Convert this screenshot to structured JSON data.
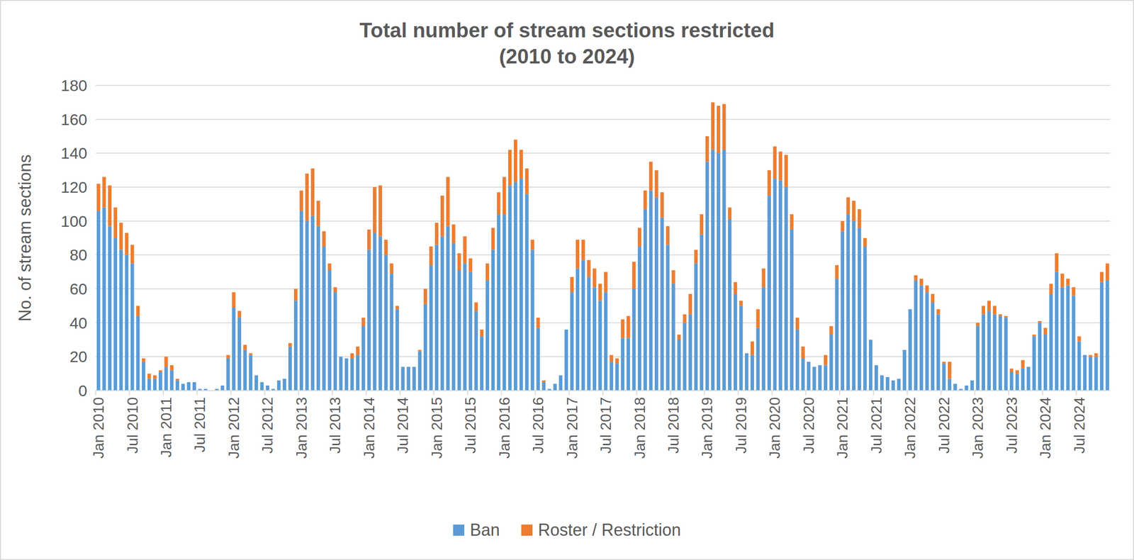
{
  "chart_data": {
    "type": "bar",
    "stacked": true,
    "title": "Total number of stream sections restricted\n(2010 to 2024)",
    "y_label": "No. of stream sections",
    "legend": "bottom",
    "grid": true,
    "ylim": [
      0,
      180
    ],
    "yticks": [
      0,
      20,
      40,
      60,
      80,
      100,
      120,
      140,
      160,
      180
    ],
    "categories": [
      "Jan 2010",
      null,
      null,
      null,
      null,
      null,
      "Jul 2010",
      null,
      null,
      null,
      null,
      null,
      "Jan 2011",
      null,
      null,
      null,
      null,
      null,
      "Jul 2011",
      null,
      null,
      null,
      null,
      null,
      "Jan 2012",
      null,
      null,
      null,
      null,
      null,
      "Jul 2012",
      null,
      null,
      null,
      null,
      null,
      "Jan 2013",
      null,
      null,
      null,
      null,
      null,
      "Jul 2013",
      null,
      null,
      null,
      null,
      null,
      "Jan 2014",
      null,
      null,
      null,
      null,
      null,
      "Jul 2014",
      null,
      null,
      null,
      null,
      null,
      "Jan 2015",
      null,
      null,
      null,
      null,
      null,
      "Jul 2015",
      null,
      null,
      null,
      null,
      null,
      "Jan 2016",
      null,
      null,
      null,
      null,
      null,
      "Jul 2016",
      null,
      null,
      null,
      null,
      null,
      "Jan 2017",
      null,
      null,
      null,
      null,
      null,
      "Jul 2017",
      null,
      null,
      null,
      null,
      null,
      "Jan 2018",
      null,
      null,
      null,
      null,
      null,
      "Jul 2018",
      null,
      null,
      null,
      null,
      null,
      "Jan 2019",
      null,
      null,
      null,
      null,
      null,
      "Jul 2019",
      null,
      null,
      null,
      null,
      null,
      "Jan 2020",
      null,
      null,
      null,
      null,
      null,
      "Jul 2020",
      null,
      null,
      null,
      null,
      null,
      "Jan 2021",
      null,
      null,
      null,
      null,
      null,
      "Jul 2021",
      null,
      null,
      null,
      null,
      null,
      "Jan 2022",
      null,
      null,
      null,
      null,
      null,
      "Jul 2022",
      null,
      null,
      null,
      null,
      null,
      "Jan 2023",
      null,
      null,
      null,
      null,
      null,
      "Jul 2023",
      null,
      null,
      null,
      null,
      null,
      "Jan 2024",
      null,
      null,
      null,
      null,
      null,
      "Jul 2024",
      null,
      null,
      null,
      null,
      null
    ],
    "series": [
      {
        "name": "Ban",
        "color": "#5b9bd5",
        "values": [
          106,
          108,
          97,
          90,
          83,
          80,
          75,
          44,
          17,
          7,
          7,
          11,
          14,
          12,
          6,
          4,
          5,
          5,
          1,
          1,
          0,
          1,
          3,
          19,
          49,
          43,
          24,
          21,
          9,
          5,
          3,
          1,
          6,
          7,
          26,
          53,
          106,
          100,
          103,
          97,
          85,
          71,
          58,
          20,
          19,
          19,
          21,
          38,
          83,
          93,
          91,
          80,
          69,
          48,
          14,
          14,
          14,
          23,
          51,
          74,
          86,
          91,
          97,
          87,
          71,
          75,
          70,
          47,
          32,
          65,
          83,
          104,
          104,
          121,
          123,
          125,
          116,
          83,
          37,
          5,
          1,
          4,
          9,
          36,
          58,
          72,
          77,
          67,
          61,
          53,
          58,
          17,
          16,
          31,
          31,
          60,
          85,
          107,
          118,
          114,
          102,
          86,
          63,
          30,
          40,
          45,
          75,
          92,
          135,
          142,
          140,
          142,
          101,
          57,
          50,
          22,
          21,
          37,
          61,
          115,
          125,
          124,
          120,
          95,
          36,
          19,
          17,
          14,
          15,
          15,
          33,
          66,
          94,
          104,
          100,
          96,
          85,
          30,
          15,
          9,
          8,
          6,
          7,
          24,
          48,
          65,
          62,
          58,
          52,
          45,
          16,
          7,
          4,
          1,
          3,
          6,
          38,
          45,
          47,
          45,
          44,
          43,
          11,
          10,
          13,
          14,
          32,
          40,
          33,
          57,
          70,
          61,
          62,
          56,
          29,
          21,
          20,
          20,
          64,
          65
        ]
      },
      {
        "name": "Roster / Restriction",
        "color": "#ed7d31",
        "values": [
          16,
          18,
          24,
          18,
          16,
          13,
          11,
          6,
          2,
          3,
          2,
          1,
          6,
          3,
          1,
          0,
          0,
          0,
          0,
          0,
          0,
          0,
          0,
          2,
          9,
          4,
          3,
          1,
          0,
          0,
          0,
          0,
          0,
          0,
          2,
          7,
          12,
          28,
          28,
          15,
          9,
          4,
          3,
          0,
          0,
          3,
          5,
          5,
          12,
          27,
          30,
          9,
          6,
          2,
          0,
          0,
          0,
          1,
          9,
          11,
          13,
          24,
          29,
          11,
          10,
          16,
          8,
          5,
          4,
          10,
          13,
          13,
          22,
          21,
          25,
          17,
          15,
          6,
          6,
          1,
          0,
          0,
          0,
          0,
          9,
          17,
          12,
          10,
          11,
          10,
          12,
          4,
          3,
          11,
          13,
          16,
          11,
          11,
          17,
          16,
          15,
          11,
          8,
          3,
          5,
          12,
          8,
          12,
          15,
          28,
          28,
          27,
          7,
          7,
          3,
          0,
          8,
          11,
          11,
          15,
          19,
          17,
          19,
          9,
          7,
          7,
          0,
          0,
          0,
          6,
          5,
          8,
          6,
          10,
          12,
          11,
          5,
          0,
          0,
          0,
          0,
          0,
          0,
          0,
          0,
          3,
          4,
          4,
          5,
          3,
          1,
          10,
          0,
          0,
          0,
          0,
          2,
          5,
          6,
          5,
          1,
          1,
          2,
          2,
          5,
          0,
          1,
          1,
          4,
          6,
          11,
          8,
          4,
          5,
          3,
          0,
          1,
          2,
          6,
          10
        ]
      }
    ]
  }
}
